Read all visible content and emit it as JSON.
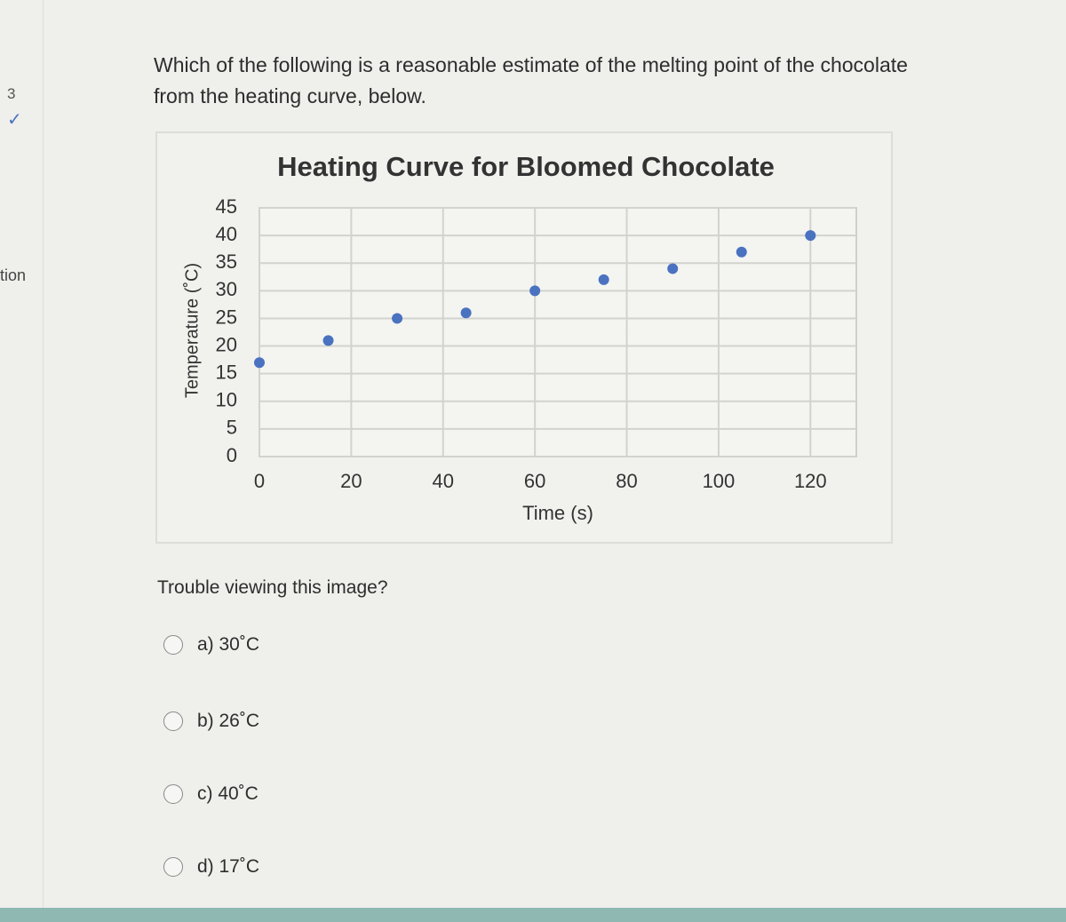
{
  "sidebar": {
    "number": "3",
    "label": "tion"
  },
  "question": "Which of the following is a reasonable estimate of the melting point of the chocolate from the heating curve, below.",
  "chart_data": {
    "type": "scatter",
    "title": "Heating Curve for Bloomed Chocolate",
    "x_label": "Time (s)",
    "y_label": "Temperature (˚C)",
    "x": [
      0,
      15,
      30,
      45,
      60,
      75,
      90,
      105,
      120
    ],
    "values": [
      17,
      21,
      25,
      26,
      30,
      32,
      34,
      37,
      40
    ],
    "color": "#4a72c0",
    "xlim": [
      0,
      130
    ],
    "xticks": [
      0,
      20,
      40,
      60,
      80,
      100,
      120
    ],
    "ylim": [
      0,
      45
    ],
    "yticks": [
      0,
      5,
      10,
      15,
      20,
      25,
      30,
      35,
      40,
      45
    ],
    "grid": true
  },
  "trouble_link": "Trouble viewing this image?",
  "options": [
    "a) 30˚C",
    "b) 26˚C",
    "c) 40˚C",
    "d) 17˚C"
  ]
}
